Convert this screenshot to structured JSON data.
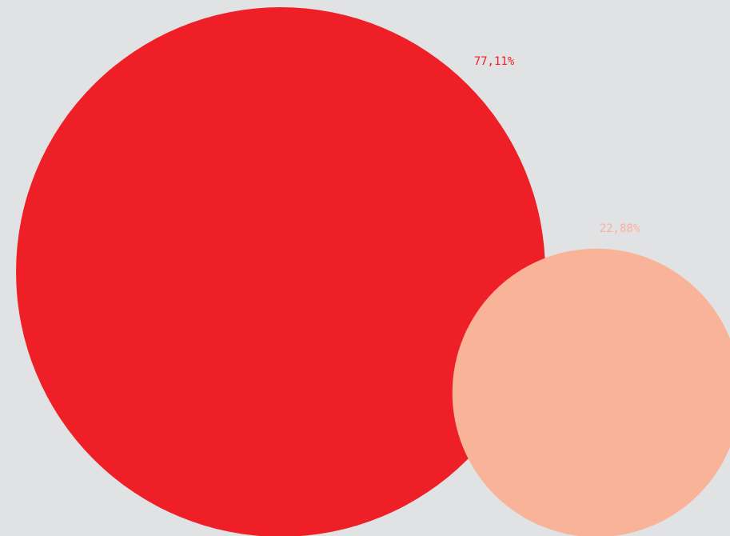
{
  "chart_data": {
    "type": "bubble",
    "values": [
      77.11,
      22.88
    ],
    "value_labels": [
      "77,11%",
      "22,88%"
    ],
    "colors": [
      "#ee1f26",
      "#f9b398"
    ]
  }
}
